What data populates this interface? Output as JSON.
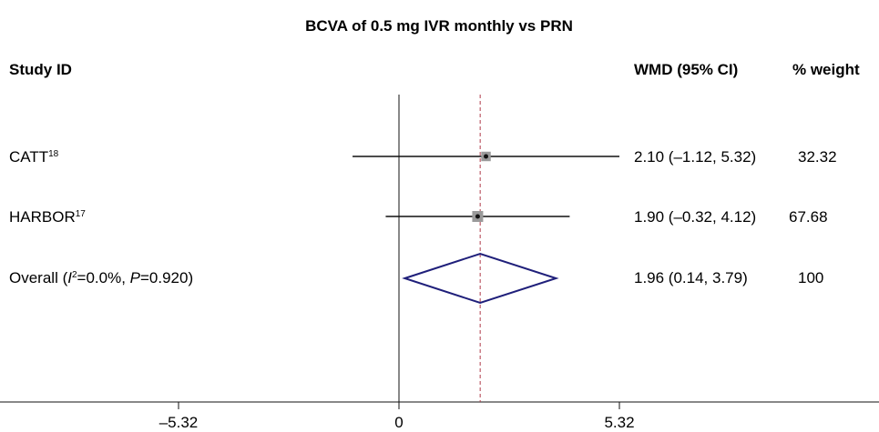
{
  "chart_data": {
    "type": "forest",
    "title": "BCVA of 0.5 mg IVR monthly vs PRN",
    "headers": {
      "study": "Study ID",
      "effect": "WMD (95% CI)",
      "weight": "% weight"
    },
    "studies": [
      {
        "name": "CATT",
        "ref": "18",
        "estimate": 2.1,
        "ci": [
          -1.12,
          5.32
        ],
        "ci_label": "2.10 (–1.12, 5.32)",
        "weight_label": "32.32",
        "weight": 32.32
      },
      {
        "name": "HARBOR",
        "ref": "17",
        "estimate": 1.9,
        "ci": [
          -0.32,
          4.12
        ],
        "ci_label": "1.90 (–0.32, 4.12)",
        "weight_label": "67.68",
        "weight": 67.68
      }
    ],
    "overall": {
      "label_prefix": "Overall (",
      "i2_symbol": "I",
      "i2_sup": "2",
      "i2_text": "=0.0%, ",
      "p_symbol": "P",
      "p_text": "=0.920)",
      "estimate": 1.96,
      "ci": [
        0.14,
        3.79
      ],
      "ci_label": "1.96 (0.14, 3.79)",
      "weight_label": "100"
    },
    "xaxis": {
      "range": [
        -5.32,
        5.32
      ],
      "ticks": [
        -5.32,
        0,
        5.32
      ],
      "tick_labels": [
        "–5.32",
        "0",
        "5.32"
      ]
    },
    "reference_line": 0,
    "overall_line_style": "dashed",
    "colors": {
      "axis": "#111111",
      "ci_line": "#111111",
      "diamond": "#1f1f7a",
      "overall_line": "#b03a4a",
      "square": "#9a9a9a"
    }
  }
}
